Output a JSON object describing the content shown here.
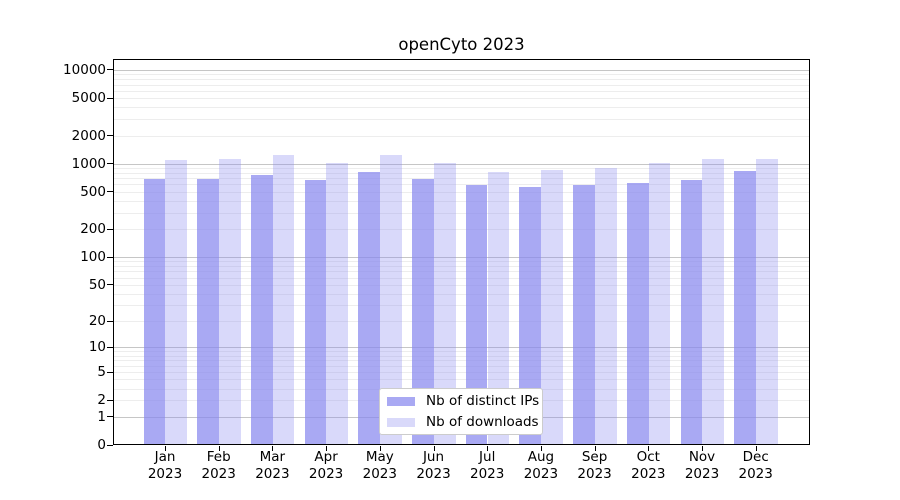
{
  "chart_data": {
    "type": "bar",
    "title": "openCyto 2023",
    "scale": "log1p",
    "grid": "both",
    "legend_position": "lower-center",
    "ylim": [
      0,
      13000
    ],
    "categories": [
      {
        "month": "Jan",
        "year": "2023"
      },
      {
        "month": "Feb",
        "year": "2023"
      },
      {
        "month": "Mar",
        "year": "2023"
      },
      {
        "month": "Apr",
        "year": "2023"
      },
      {
        "month": "May",
        "year": "2023"
      },
      {
        "month": "Jun",
        "year": "2023"
      },
      {
        "month": "Jul",
        "year": "2023"
      },
      {
        "month": "Aug",
        "year": "2023"
      },
      {
        "month": "Sep",
        "year": "2023"
      },
      {
        "month": "Oct",
        "year": "2023"
      },
      {
        "month": "Nov",
        "year": "2023"
      },
      {
        "month": "Dec",
        "year": "2023"
      }
    ],
    "series": [
      {
        "name": "Nb of distinct IPs",
        "key": "distinct-ips",
        "fill": "rgba(136,136,238,0.72)",
        "values": [
          690,
          690,
          750,
          665,
          820,
          680,
          590,
          560,
          590,
          620,
          665,
          830
        ]
      },
      {
        "name": "Nb of downloads",
        "key": "downloads",
        "fill": "rgba(136,136,238,0.32)",
        "values": [
          1085,
          1130,
          1250,
          1030,
          1240,
          1030,
          810,
          860,
          900,
          1025,
          1115,
          1130
        ]
      }
    ],
    "y_axis": {
      "ticks": [
        {
          "v": 10000,
          "label": "10000"
        },
        {
          "v": 5000,
          "label": "5000"
        },
        {
          "v": 2000,
          "label": "2000"
        },
        {
          "v": 1000,
          "label": "1000"
        },
        {
          "v": 500,
          "label": "500"
        },
        {
          "v": 200,
          "label": "200"
        },
        {
          "v": 100,
          "label": "100"
        },
        {
          "v": 50,
          "label": "50"
        },
        {
          "v": 20,
          "label": "20"
        },
        {
          "v": 10,
          "label": "10"
        },
        {
          "v": 5,
          "label": "5"
        },
        {
          "v": 2,
          "label": "2"
        },
        {
          "v": 1,
          "label": "1"
        },
        {
          "v": 0,
          "label": "0"
        }
      ]
    },
    "colors": {
      "grid_major": "#c6c6c6",
      "grid_minor": "#ededed",
      "legend_border": "#cccccc",
      "axis": "#000000",
      "background": "#ffffff"
    }
  }
}
